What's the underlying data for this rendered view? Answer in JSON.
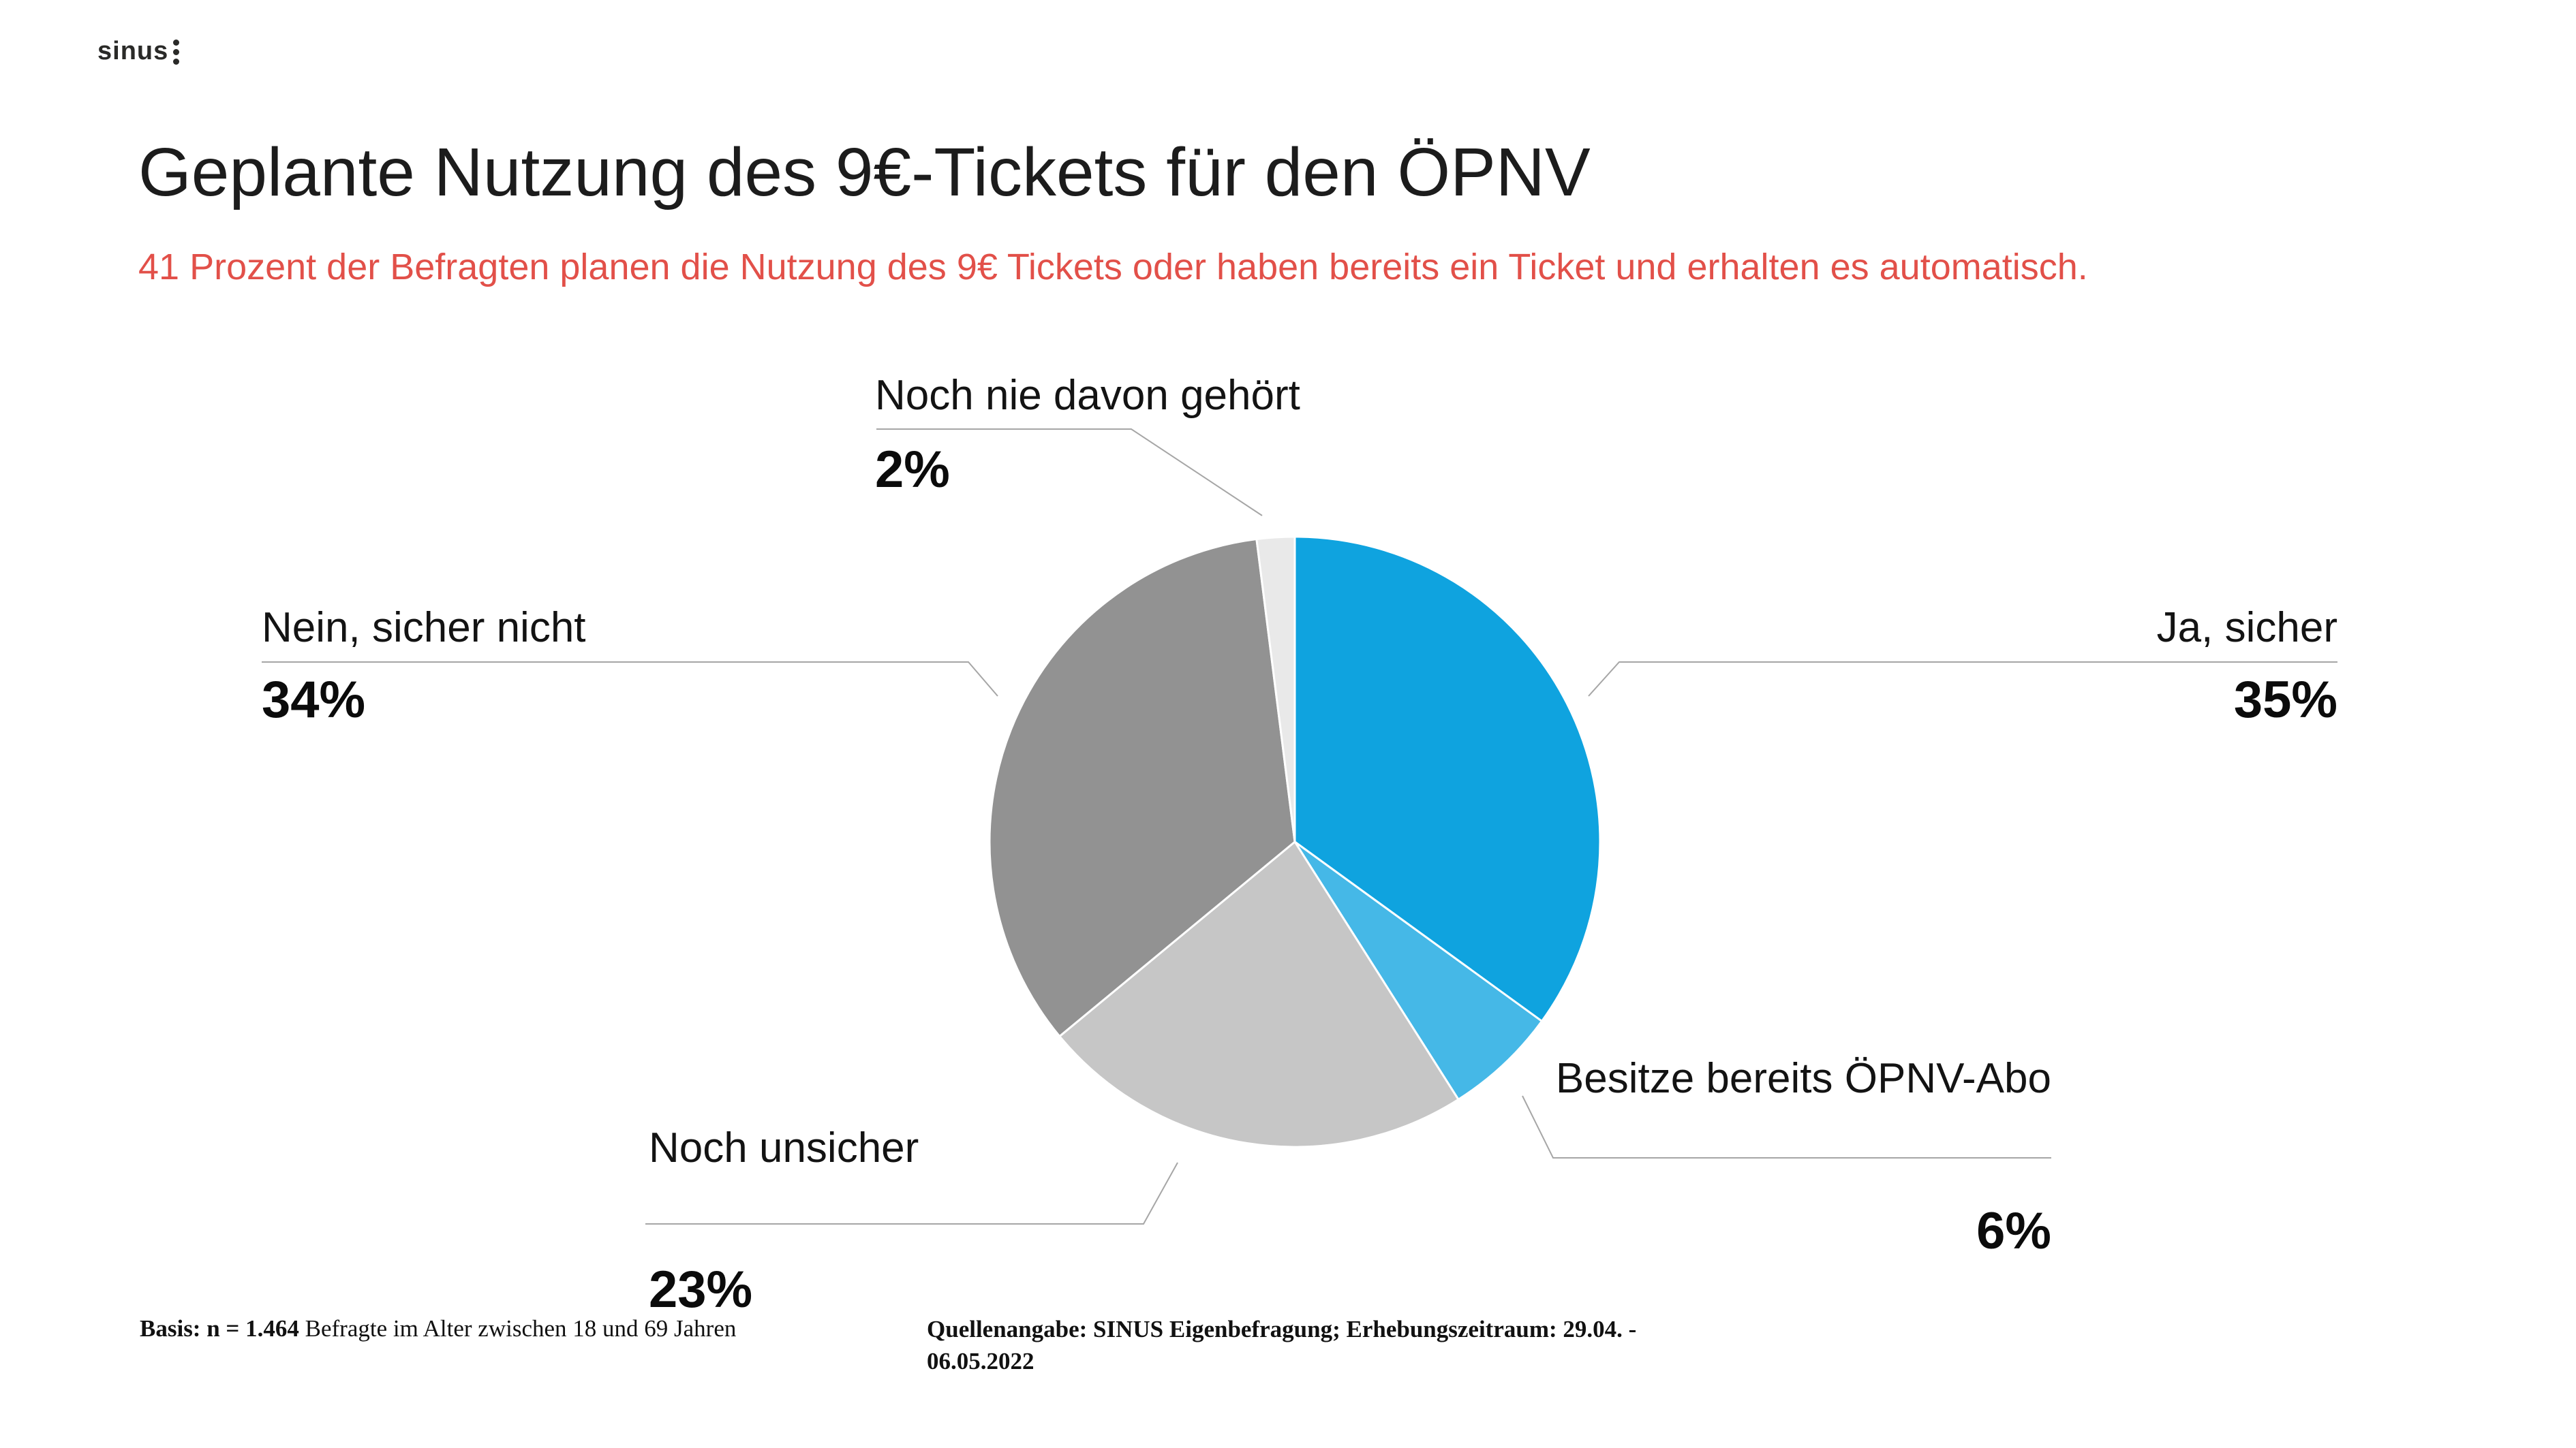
{
  "brand": {
    "logo_text": "sinus"
  },
  "header": {
    "title": "Geplante Nutzung des 9€-Tickets für den ÖPNV",
    "subtitle": "41 Prozent der Befragten planen die Nutzung des 9€ Tickets oder haben bereits ein Ticket und erhalten es automatisch.",
    "subtitle_color": "#e25049"
  },
  "chart_data": {
    "type": "pie",
    "title": "Geplante Nutzung des 9€-Tickets für den ÖPNV",
    "start_angle_deg": 0,
    "direction": "clockwise",
    "total": 100,
    "slices": [
      {
        "label": "Ja, sicher",
        "value": 35,
        "display": "35%",
        "color": "#0fa3df"
      },
      {
        "label": "Besitze bereits ÖPNV-Abo",
        "value": 6,
        "display": "6%",
        "color": "#45b8e7"
      },
      {
        "label": "Noch unsicher",
        "value": 23,
        "display": "23%",
        "color": "#c6c6c6"
      },
      {
        "label": "Nein, sicher nicht",
        "value": 34,
        "display": "34%",
        "color": "#929292"
      },
      {
        "label": "Noch nie davon gehört",
        "value": 2,
        "display": "2%",
        "color": "#e9e9e9"
      }
    ],
    "legend_position": "callout-labels",
    "grid": false
  },
  "footer": {
    "basis_bold": "Basis: n = 1.464",
    "basis_rest": " Befragte im Alter zwischen 18 und 69 Jahren",
    "source_line1": "Quellenangabe: SINUS Eigenbefragung; Erhebungszeitraum: 29.04. -",
    "source_line2": "06.05.2022"
  }
}
